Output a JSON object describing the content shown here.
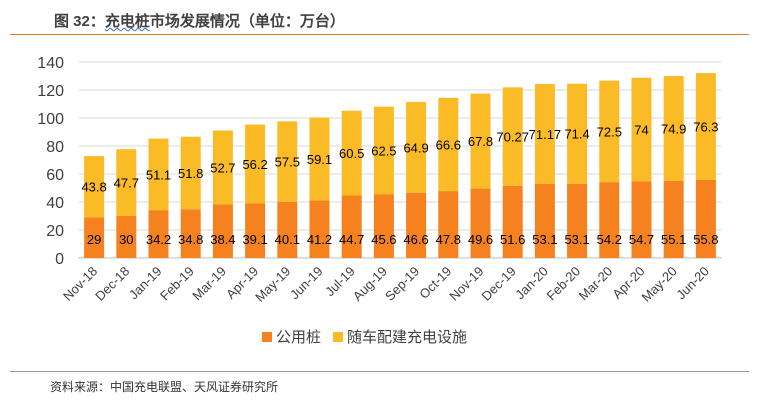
{
  "figure_title_prefix": "图 32：",
  "figure_title_main": "充电桩",
  "figure_title_rest": "市场发展情况（单位：万台）",
  "source": "资料来源：中国充电联盟、天风证券研究所",
  "colors": {
    "public": "#f5821f",
    "private": "#fbbb27",
    "accent_rule": "#e07b2a"
  },
  "chart_data": {
    "type": "bar",
    "stacked": true,
    "categories": [
      "Nov-18",
      "Dec-18",
      "Jan-19",
      "Feb-19",
      "Mar-19",
      "Apr-19",
      "May-19",
      "Jun-19",
      "Jul-19",
      "Aug-19",
      "Sep-19",
      "Oct-19",
      "Nov-19",
      "Dec-19",
      "Jan-20",
      "Feb-20",
      "Mar-20",
      "Apr-20",
      "May-20",
      "Jun-20"
    ],
    "series": [
      {
        "name": "公用桩",
        "values": [
          29,
          30,
          34.2,
          34.8,
          38.4,
          39.1,
          40.1,
          41.2,
          44.7,
          45.6,
          46.6,
          47.8,
          49.6,
          51.6,
          53.1,
          53.1,
          54.2,
          54.7,
          55.1,
          55.8
        ]
      },
      {
        "name": "随车配建充电设施",
        "values": [
          43.8,
          47.7,
          51.1,
          51.8,
          52.7,
          56.2,
          57.5,
          59.1,
          60.5,
          62.5,
          64.9,
          66.6,
          67.8,
          70.27,
          71.17,
          71.4,
          72.5,
          74,
          74.9,
          76.3
        ]
      }
    ],
    "ylim": [
      0,
      140
    ],
    "yticks": [
      0,
      20,
      40,
      60,
      80,
      100,
      120,
      140
    ],
    "grid": true,
    "legend": "bottom"
  }
}
